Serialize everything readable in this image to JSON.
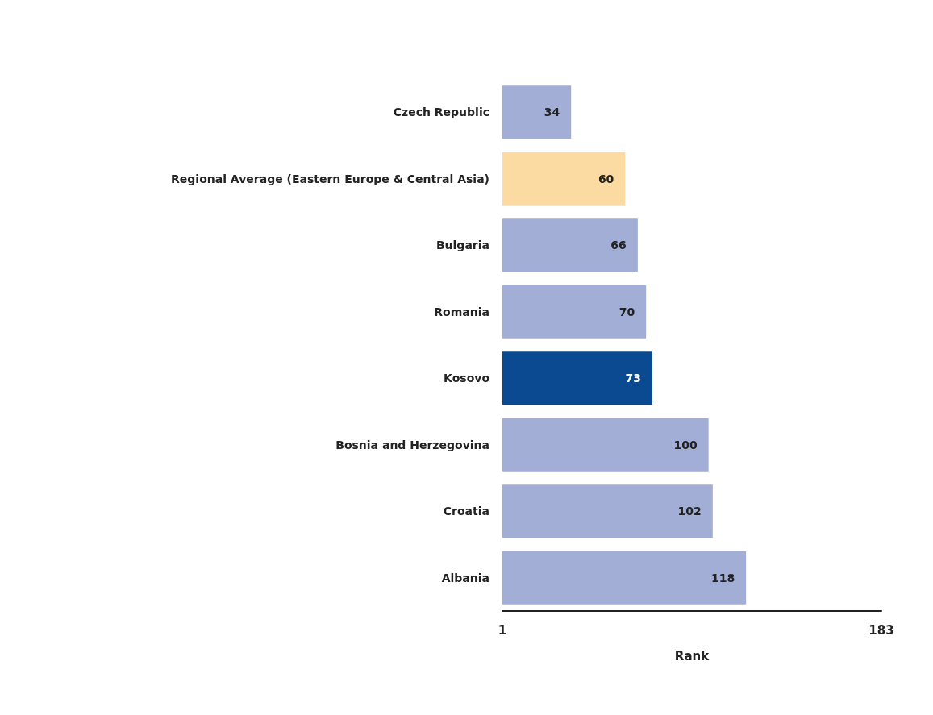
{
  "chart_data": {
    "type": "bar",
    "orientation": "horizontal",
    "xlabel": "Rank",
    "categories": [
      "Czech Republic",
      "Regional Average (Eastern Europe & Central Asia)",
      "Bulgaria",
      "Romania",
      "Kosovo",
      "Bosnia and Herzegovina",
      "Croatia",
      "Albania"
    ],
    "values": [
      34,
      60,
      66,
      70,
      73,
      100,
      102,
      118
    ],
    "colors": [
      "#a3aed6",
      "#fcdba3",
      "#a3aed6",
      "#a3aed6",
      "#0b4a91",
      "#a3aed6",
      "#a3aed6",
      "#a3aed6"
    ],
    "xlim": [
      1,
      183
    ],
    "xticks": [
      1,
      183
    ],
    "data_labels": true,
    "grid": false
  }
}
